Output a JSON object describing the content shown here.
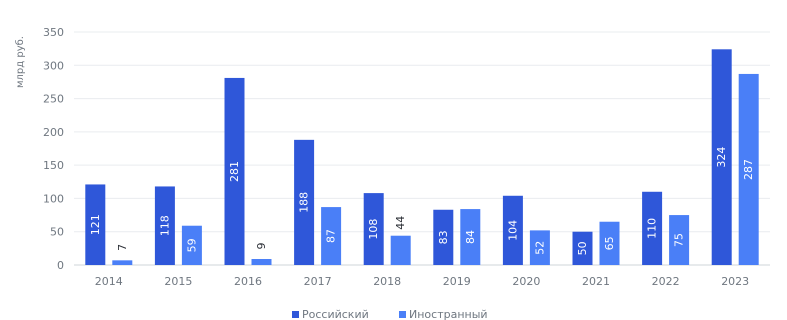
{
  "chart_data": {
    "type": "bar",
    "categories": [
      "2014",
      "2015",
      "2016",
      "2017",
      "2018",
      "2019",
      "2020",
      "2021",
      "2022",
      "2023"
    ],
    "series": [
      {
        "name": "Российский",
        "color": "#2f57d9",
        "values": [
          121,
          118,
          281,
          188,
          108,
          83,
          104,
          50,
          110,
          324
        ]
      },
      {
        "name": "Иностранный",
        "color": "#4a7ff7",
        "values": [
          7,
          59,
          9,
          87,
          44,
          84,
          52,
          65,
          75,
          287
        ]
      }
    ],
    "ylabel": "млрд руб.",
    "ylim": [
      0,
      350
    ],
    "yticks": [
      0,
      50,
      100,
      150,
      200,
      250,
      300,
      350
    ],
    "grid": true,
    "legend": "bottom"
  }
}
